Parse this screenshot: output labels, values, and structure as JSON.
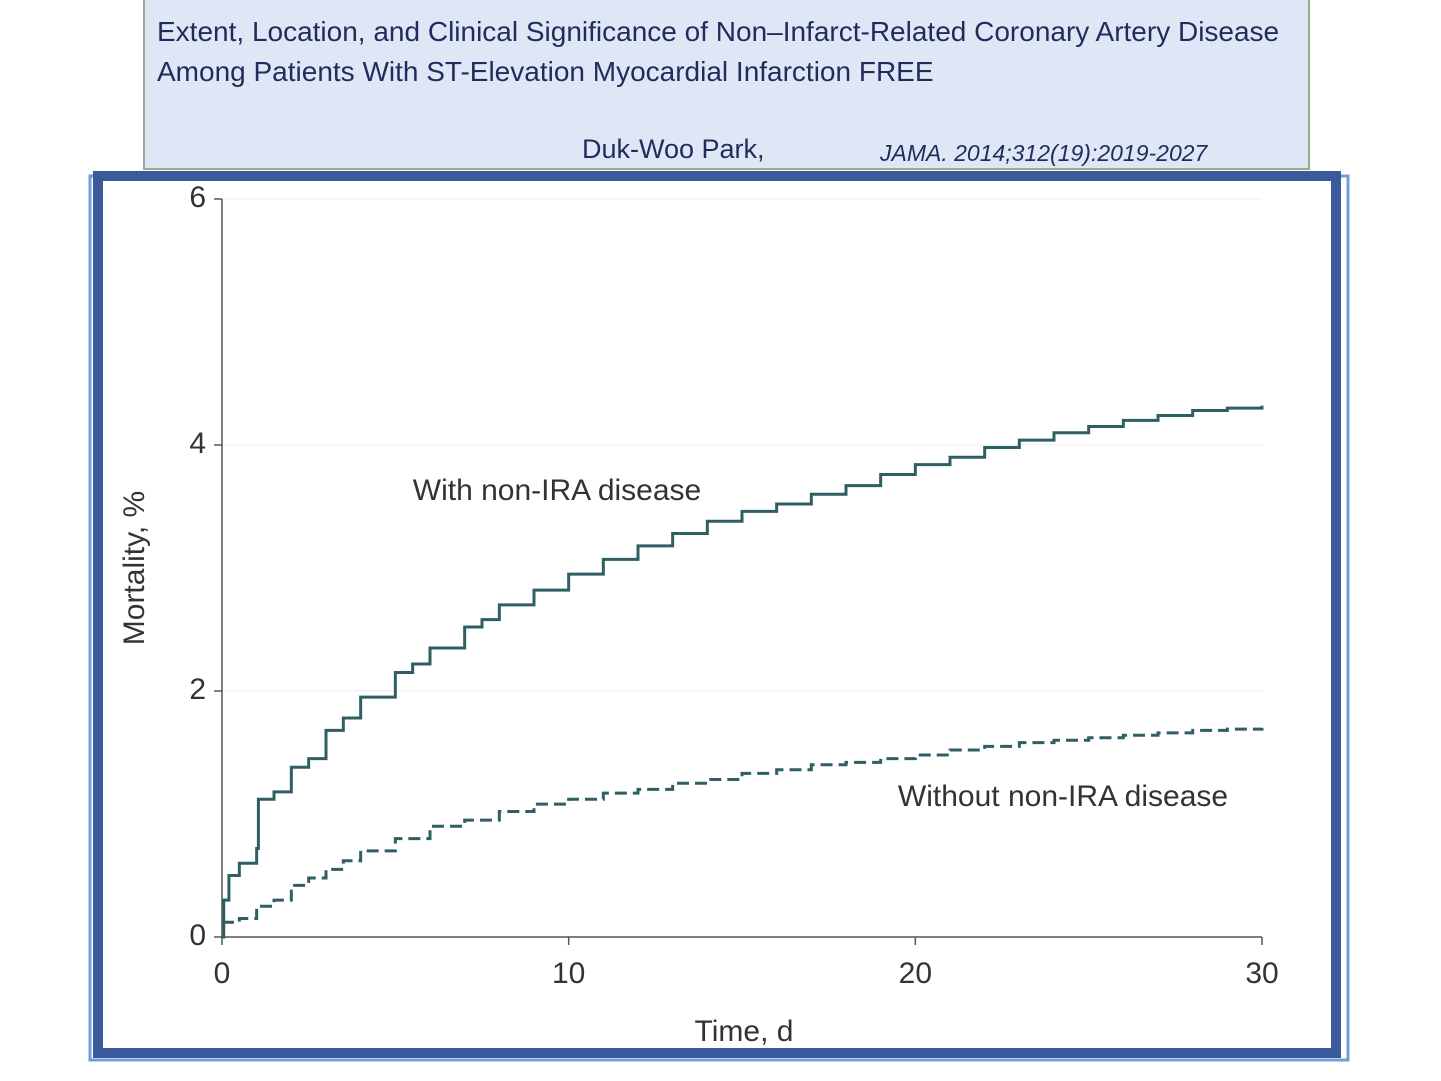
{
  "header": {
    "title": "Extent, Location, and Clinical Significance of Non–Infarct-Related Coronary Artery Disease Among Patients With ST-Elevation Myocardial Infarction FREE",
    "author": "Duk-Woo Park,",
    "journal": "JAMA. 2014;312(19):2019-2027"
  },
  "chart_data": {
    "type": "step",
    "x_label": "Time, d",
    "y_label": "Mortality, %",
    "annotations": [
      "With non-IRA disease",
      "Without non-IRA disease"
    ],
    "xlim": [
      0,
      30
    ],
    "xticks": [
      0,
      10,
      20,
      30
    ],
    "ylim": [
      0,
      6
    ],
    "yticks": [
      0,
      2,
      4,
      6
    ],
    "grid": true,
    "series": [
      {
        "name": "With non-IRA disease",
        "color": "#2f5f63",
        "dash": false,
        "x": [
          0,
          0.05,
          0.2,
          0.5,
          1,
          1.05,
          1.5,
          2,
          2.5,
          3,
          3.5,
          4,
          5,
          5.5,
          6,
          7,
          7.5,
          8,
          9,
          10,
          11,
          12,
          13,
          14,
          15,
          16,
          17,
          18,
          19,
          20,
          21,
          22,
          23,
          24,
          25,
          26,
          27,
          28,
          29,
          30
        ],
        "values": [
          0,
          0.3,
          0.5,
          0.6,
          0.72,
          1.12,
          1.18,
          1.38,
          1.45,
          1.68,
          1.78,
          1.95,
          2.15,
          2.22,
          2.35,
          2.52,
          2.58,
          2.7,
          2.82,
          2.95,
          3.07,
          3.18,
          3.28,
          3.38,
          3.46,
          3.52,
          3.6,
          3.67,
          3.76,
          3.84,
          3.9,
          3.98,
          4.04,
          4.1,
          4.15,
          4.2,
          4.24,
          4.28,
          4.3,
          4.32
        ]
      },
      {
        "name": "Without non-IRA disease",
        "color": "#2f5f63",
        "dash": true,
        "x": [
          0,
          0.5,
          1,
          1.5,
          2,
          2.5,
          3,
          3.5,
          4,
          5,
          6,
          7,
          8,
          9,
          10,
          11,
          12,
          13,
          14,
          15,
          16,
          17,
          18,
          19,
          20,
          21,
          22,
          23,
          24,
          25,
          26,
          27,
          28,
          29,
          30
        ],
        "values": [
          0.12,
          0.15,
          0.25,
          0.3,
          0.42,
          0.48,
          0.55,
          0.62,
          0.7,
          0.8,
          0.9,
          0.95,
          1.02,
          1.08,
          1.12,
          1.17,
          1.2,
          1.25,
          1.28,
          1.33,
          1.36,
          1.4,
          1.42,
          1.45,
          1.48,
          1.52,
          1.55,
          1.58,
          1.6,
          1.62,
          1.64,
          1.66,
          1.68,
          1.69,
          1.7
        ]
      }
    ]
  }
}
